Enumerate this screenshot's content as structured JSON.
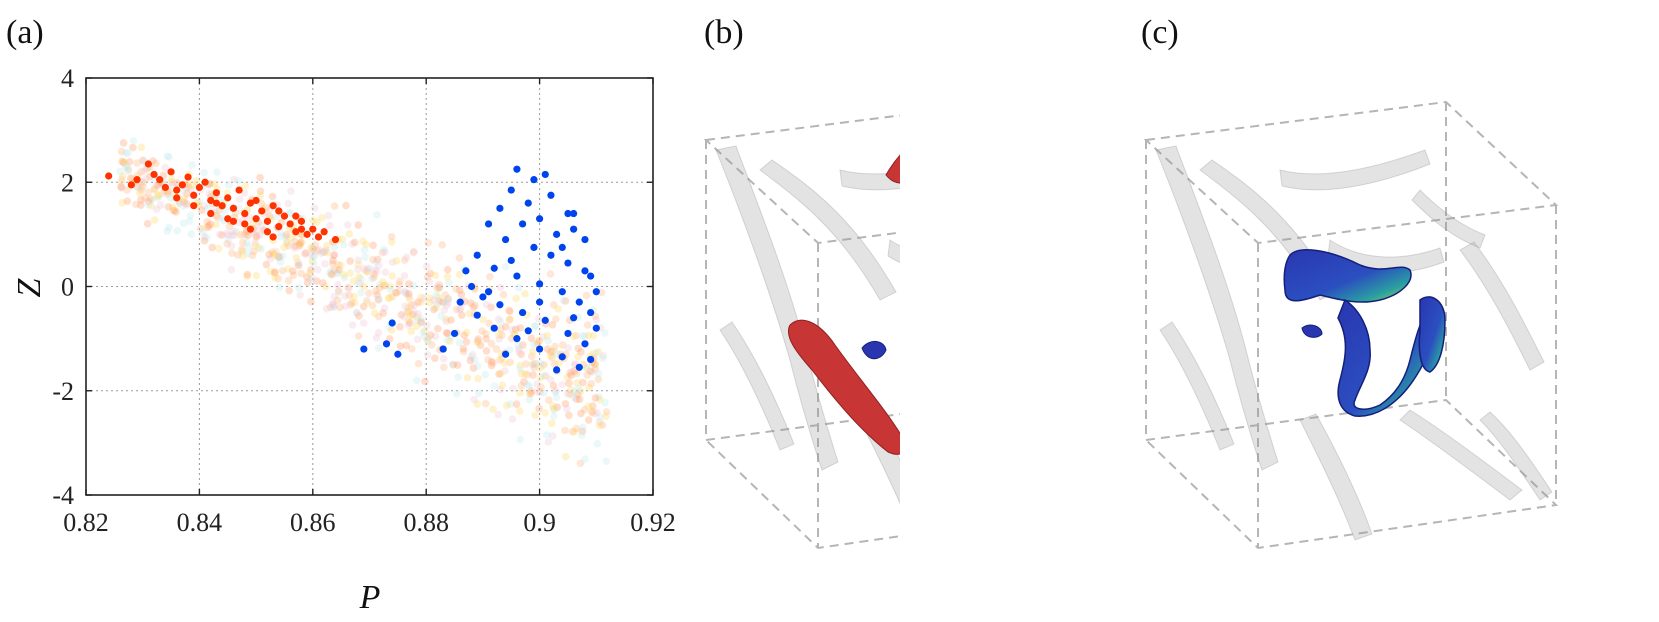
{
  "panels": {
    "a": {
      "label": "(a)"
    },
    "b": {
      "label": "(b)"
    },
    "c": {
      "label": "(c)"
    }
  },
  "chart_data": {
    "type": "scatter",
    "xlabel": "P",
    "ylabel": "Z",
    "xlim": [
      0.82,
      0.92
    ],
    "ylim": [
      -4,
      4
    ],
    "xticks": [
      0.82,
      0.84,
      0.86,
      0.88,
      0.9,
      0.92
    ],
    "xtick_labels": [
      "0.82",
      "0.84",
      "0.86",
      "0.88",
      "0.9",
      "0.92"
    ],
    "yticks": [
      -4,
      -2,
      0,
      2,
      4
    ],
    "ytick_labels": [
      "-4",
      "-2",
      "0",
      "2",
      "4"
    ],
    "grid": true,
    "colors": {
      "red_cluster": "#ff3300",
      "blue_cluster": "#0044ee",
      "background": [
        "#ffb380",
        "#ffd966",
        "#ff9966",
        "#c2e8f0",
        "#f0c8d8"
      ]
    },
    "series": [
      {
        "color": "#ff3300",
        "points": [
          [
            0.824,
            2.12
          ],
          [
            0.828,
            1.95
          ],
          [
            0.831,
            2.35
          ],
          [
            0.833,
            2.05
          ],
          [
            0.835,
            2.2
          ],
          [
            0.836,
            1.85
          ],
          [
            0.838,
            2.1
          ],
          [
            0.839,
            1.75
          ],
          [
            0.84,
            1.9
          ],
          [
            0.841,
            2.0
          ],
          [
            0.842,
            1.65
          ],
          [
            0.843,
            1.8
          ],
          [
            0.844,
            1.55
          ],
          [
            0.845,
            1.7
          ],
          [
            0.846,
            1.5
          ],
          [
            0.847,
            1.85
          ],
          [
            0.848,
            1.4
          ],
          [
            0.849,
            1.6
          ],
          [
            0.85,
            1.3
          ],
          [
            0.851,
            1.45
          ],
          [
            0.852,
            1.25
          ],
          [
            0.853,
            1.55
          ],
          [
            0.854,
            1.15
          ],
          [
            0.855,
            1.35
          ],
          [
            0.856,
            1.2
          ],
          [
            0.857,
            1.05
          ],
          [
            0.858,
            1.25
          ],
          [
            0.859,
            1.0
          ],
          [
            0.86,
            1.1
          ],
          [
            0.861,
            0.95
          ],
          [
            0.862,
            1.05
          ],
          [
            0.864,
            0.9
          ],
          [
            0.845,
            1.3
          ],
          [
            0.848,
            1.2
          ],
          [
            0.852,
            1.05
          ],
          [
            0.842,
            1.4
          ],
          [
            0.839,
            1.55
          ],
          [
            0.836,
            1.7
          ],
          [
            0.854,
            1.45
          ],
          [
            0.857,
            1.35
          ],
          [
            0.85,
            1.65
          ],
          [
            0.846,
            1.25
          ],
          [
            0.843,
            1.6
          ],
          [
            0.837,
            1.95
          ],
          [
            0.834,
            1.9
          ],
          [
            0.858,
            1.1
          ],
          [
            0.853,
            0.95
          ],
          [
            0.849,
            1.1
          ],
          [
            0.832,
            2.15
          ],
          [
            0.829,
            2.05
          ]
        ]
      },
      {
        "color": "#0044ee",
        "points": [
          [
            0.896,
            2.25
          ],
          [
            0.899,
            2.05
          ],
          [
            0.901,
            2.15
          ],
          [
            0.895,
            1.85
          ],
          [
            0.898,
            1.6
          ],
          [
            0.902,
            1.75
          ],
          [
            0.905,
            1.4
          ],
          [
            0.893,
            1.5
          ],
          [
            0.897,
            1.2
          ],
          [
            0.9,
            1.3
          ],
          [
            0.903,
            1.0
          ],
          [
            0.906,
            1.1
          ],
          [
            0.891,
            1.2
          ],
          [
            0.894,
            0.9
          ],
          [
            0.899,
            0.75
          ],
          [
            0.902,
            0.6
          ],
          [
            0.905,
            0.45
          ],
          [
            0.908,
            0.3
          ],
          [
            0.889,
            0.6
          ],
          [
            0.892,
            0.35
          ],
          [
            0.896,
            0.2
          ],
          [
            0.9,
            0.05
          ],
          [
            0.904,
            -0.1
          ],
          [
            0.907,
            -0.3
          ],
          [
            0.909,
            -0.5
          ],
          [
            0.91,
            -0.8
          ],
          [
            0.888,
            0.0
          ],
          [
            0.89,
            -0.2
          ],
          [
            0.893,
            -0.35
          ],
          [
            0.897,
            -0.5
          ],
          [
            0.901,
            -0.65
          ],
          [
            0.905,
            -0.9
          ],
          [
            0.908,
            -1.1
          ],
          [
            0.909,
            -1.4
          ],
          [
            0.886,
            -0.3
          ],
          [
            0.889,
            -0.55
          ],
          [
            0.892,
            -0.8
          ],
          [
            0.896,
            -1.0
          ],
          [
            0.9,
            -1.2
          ],
          [
            0.904,
            -1.35
          ],
          [
            0.907,
            -1.55
          ],
          [
            0.885,
            -0.9
          ],
          [
            0.883,
            -1.2
          ],
          [
            0.874,
            -0.7
          ],
          [
            0.873,
            -1.1
          ],
          [
            0.875,
            -1.3
          ],
          [
            0.869,
            -1.2
          ],
          [
            0.906,
            1.4
          ],
          [
            0.908,
            0.9
          ],
          [
            0.904,
            0.75
          ],
          [
            0.887,
            0.3
          ],
          [
            0.895,
            0.5
          ],
          [
            0.9,
            -0.3
          ],
          [
            0.898,
            -0.85
          ],
          [
            0.903,
            -1.6
          ],
          [
            0.91,
            -0.1
          ],
          [
            0.909,
            0.2
          ],
          [
            0.906,
            -0.6
          ],
          [
            0.894,
            -1.3
          ],
          [
            0.891,
            -0.1
          ]
        ]
      }
    ]
  }
}
